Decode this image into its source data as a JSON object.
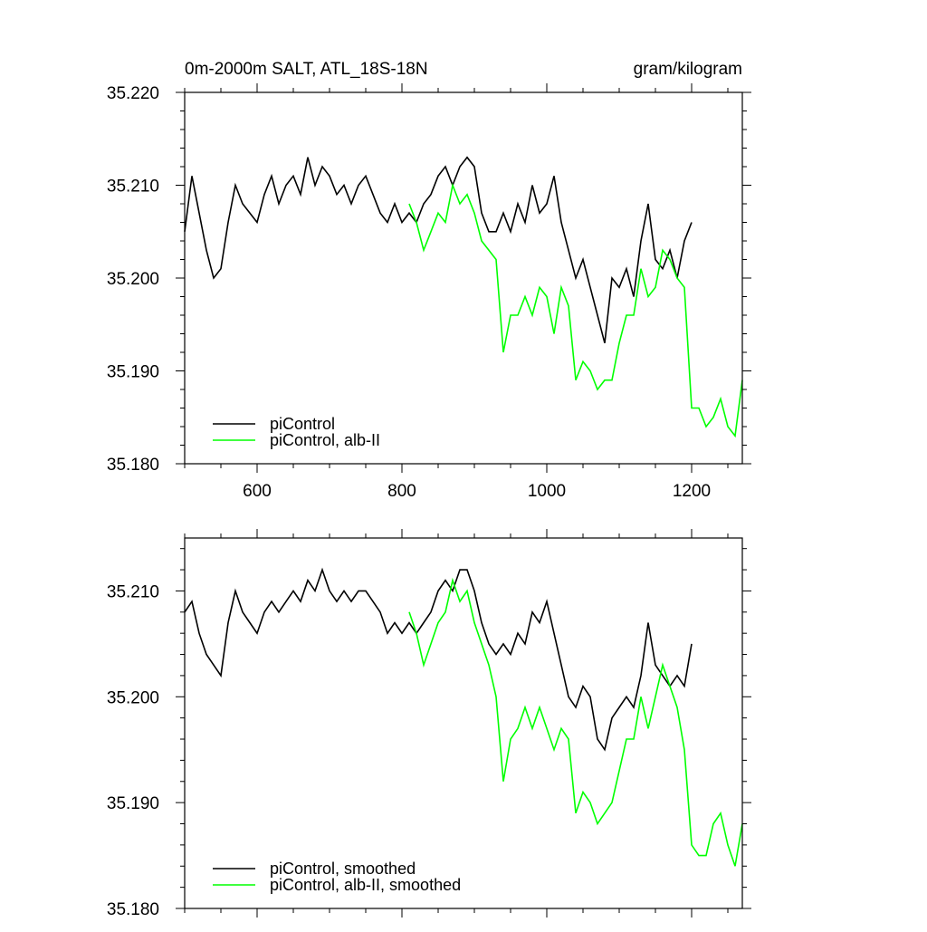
{
  "figure": {
    "title_left": "0m-2000m SALT, ATL_18S-18N",
    "title_right": "gram/kilogram"
  },
  "colors": {
    "control": "#000000",
    "experiment": "#00ff00",
    "frame": "#000000"
  },
  "chart_data": [
    {
      "type": "line",
      "xlim": [
        500,
        1270
      ],
      "ylim": [
        35.18,
        35.22
      ],
      "xticks": [
        "600",
        "800",
        "1000",
        "1200"
      ],
      "xtick_values": [
        600,
        800,
        1000,
        1200
      ],
      "yticks": [
        "35.180",
        "35.190",
        "35.200",
        "35.210",
        "35.220"
      ],
      "ytick_values": [
        35.18,
        35.19,
        35.2,
        35.21,
        35.22
      ],
      "show_xtick_labels": true,
      "legend": "bottom-left",
      "series": [
        {
          "name": "piControl",
          "color": "#000000",
          "x": [
            500,
            510,
            520,
            530,
            540,
            550,
            560,
            570,
            580,
            590,
            600,
            610,
            620,
            630,
            640,
            650,
            660,
            670,
            680,
            690,
            700,
            710,
            720,
            730,
            740,
            750,
            760,
            770,
            780,
            790,
            800,
            810,
            820,
            830,
            840,
            850,
            860,
            870,
            880,
            890,
            900,
            910,
            920,
            930,
            940,
            950,
            960,
            970,
            980,
            990,
            1000,
            1010,
            1020,
            1030,
            1040,
            1050,
            1060,
            1070,
            1080,
            1090,
            1100,
            1110,
            1120,
            1130,
            1140,
            1150,
            1160,
            1170,
            1180,
            1190,
            1200
          ],
          "values": [
            35.205,
            35.211,
            35.207,
            35.203,
            35.2,
            35.201,
            35.206,
            35.21,
            35.208,
            35.207,
            35.206,
            35.209,
            35.211,
            35.208,
            35.21,
            35.211,
            35.209,
            35.213,
            35.21,
            35.212,
            35.211,
            35.209,
            35.21,
            35.208,
            35.21,
            35.211,
            35.209,
            35.207,
            35.206,
            35.208,
            35.206,
            35.207,
            35.206,
            35.208,
            35.209,
            35.211,
            35.212,
            35.21,
            35.212,
            35.213,
            35.212,
            35.207,
            35.205,
            35.205,
            35.207,
            35.205,
            35.208,
            35.206,
            35.21,
            35.207,
            35.208,
            35.211,
            35.206,
            35.203,
            35.2,
            35.202,
            35.199,
            35.196,
            35.193,
            35.2,
            35.199,
            35.201,
            35.198,
            35.204,
            35.208,
            35.202,
            35.201,
            35.203,
            35.2,
            35.204,
            35.206
          ]
        },
        {
          "name": "piControl, alb-II",
          "color": "#00ff00",
          "x": [
            810,
            820,
            830,
            840,
            850,
            860,
            870,
            880,
            890,
            900,
            910,
            920,
            930,
            940,
            950,
            960,
            970,
            980,
            990,
            1000,
            1010,
            1020,
            1030,
            1040,
            1050,
            1060,
            1070,
            1080,
            1090,
            1100,
            1110,
            1120,
            1130,
            1140,
            1150,
            1160,
            1170,
            1180,
            1190,
            1200,
            1210,
            1220,
            1230,
            1240,
            1250,
            1260,
            1270
          ],
          "values": [
            35.208,
            35.206,
            35.203,
            35.205,
            35.207,
            35.206,
            35.21,
            35.208,
            35.209,
            35.207,
            35.204,
            35.203,
            35.202,
            35.192,
            35.196,
            35.196,
            35.198,
            35.196,
            35.199,
            35.198,
            35.194,
            35.199,
            35.197,
            35.189,
            35.191,
            35.19,
            35.188,
            35.189,
            35.189,
            35.193,
            35.196,
            35.196,
            35.201,
            35.198,
            35.199,
            35.203,
            35.202,
            35.2,
            35.199,
            35.186,
            35.186,
            35.184,
            35.185,
            35.187,
            35.184,
            35.183,
            35.189
          ]
        }
      ]
    },
    {
      "type": "line",
      "xlim": [
        500,
        1270
      ],
      "ylim": [
        35.18,
        35.215
      ],
      "xticks": [
        "600",
        "800",
        "1000",
        "1200"
      ],
      "xtick_values": [
        600,
        800,
        1000,
        1200
      ],
      "yticks": [
        "35.180",
        "35.190",
        "35.200",
        "35.210"
      ],
      "ytick_values": [
        35.18,
        35.19,
        35.2,
        35.21
      ],
      "show_xtick_labels": false,
      "legend": "bottom-left",
      "series": [
        {
          "name": "piControl, smoothed",
          "color": "#000000",
          "x": [
            500,
            510,
            520,
            530,
            540,
            550,
            560,
            570,
            580,
            590,
            600,
            610,
            620,
            630,
            640,
            650,
            660,
            670,
            680,
            690,
            700,
            710,
            720,
            730,
            740,
            750,
            760,
            770,
            780,
            790,
            800,
            810,
            820,
            830,
            840,
            850,
            860,
            870,
            880,
            890,
            900,
            910,
            920,
            930,
            940,
            950,
            960,
            970,
            980,
            990,
            1000,
            1010,
            1020,
            1030,
            1040,
            1050,
            1060,
            1070,
            1080,
            1090,
            1100,
            1110,
            1120,
            1130,
            1140,
            1150,
            1160,
            1170,
            1180,
            1190,
            1200
          ],
          "values": [
            35.208,
            35.209,
            35.206,
            35.204,
            35.203,
            35.202,
            35.207,
            35.21,
            35.208,
            35.207,
            35.206,
            35.208,
            35.209,
            35.208,
            35.209,
            35.21,
            35.209,
            35.211,
            35.21,
            35.212,
            35.21,
            35.209,
            35.21,
            35.209,
            35.21,
            35.21,
            35.209,
            35.208,
            35.206,
            35.207,
            35.206,
            35.207,
            35.206,
            35.207,
            35.208,
            35.21,
            35.211,
            35.21,
            35.212,
            35.212,
            35.21,
            35.207,
            35.205,
            35.204,
            35.205,
            35.204,
            35.206,
            35.205,
            35.208,
            35.207,
            35.209,
            35.206,
            35.203,
            35.2,
            35.199,
            35.201,
            35.2,
            35.196,
            35.195,
            35.198,
            35.199,
            35.2,
            35.199,
            35.202,
            35.207,
            35.203,
            35.202,
            35.201,
            35.202,
            35.201,
            35.205
          ]
        },
        {
          "name": "piControl, alb-II, smoothed",
          "color": "#00ff00",
          "x": [
            810,
            820,
            830,
            840,
            850,
            860,
            870,
            880,
            890,
            900,
            910,
            920,
            930,
            940,
            950,
            960,
            970,
            980,
            990,
            1000,
            1010,
            1020,
            1030,
            1040,
            1050,
            1060,
            1070,
            1080,
            1090,
            1100,
            1110,
            1120,
            1130,
            1140,
            1150,
            1160,
            1170,
            1180,
            1190,
            1200,
            1210,
            1220,
            1230,
            1240,
            1250,
            1260,
            1270
          ],
          "values": [
            35.208,
            35.206,
            35.203,
            35.205,
            35.207,
            35.208,
            35.211,
            35.209,
            35.21,
            35.207,
            35.205,
            35.203,
            35.2,
            35.192,
            35.196,
            35.197,
            35.199,
            35.197,
            35.199,
            35.197,
            35.195,
            35.197,
            35.196,
            35.189,
            35.191,
            35.19,
            35.188,
            35.189,
            35.19,
            35.193,
            35.196,
            35.196,
            35.2,
            35.197,
            35.2,
            35.203,
            35.201,
            35.199,
            35.195,
            35.186,
            35.185,
            35.185,
            35.188,
            35.189,
            35.186,
            35.184,
            35.188
          ]
        }
      ]
    }
  ]
}
